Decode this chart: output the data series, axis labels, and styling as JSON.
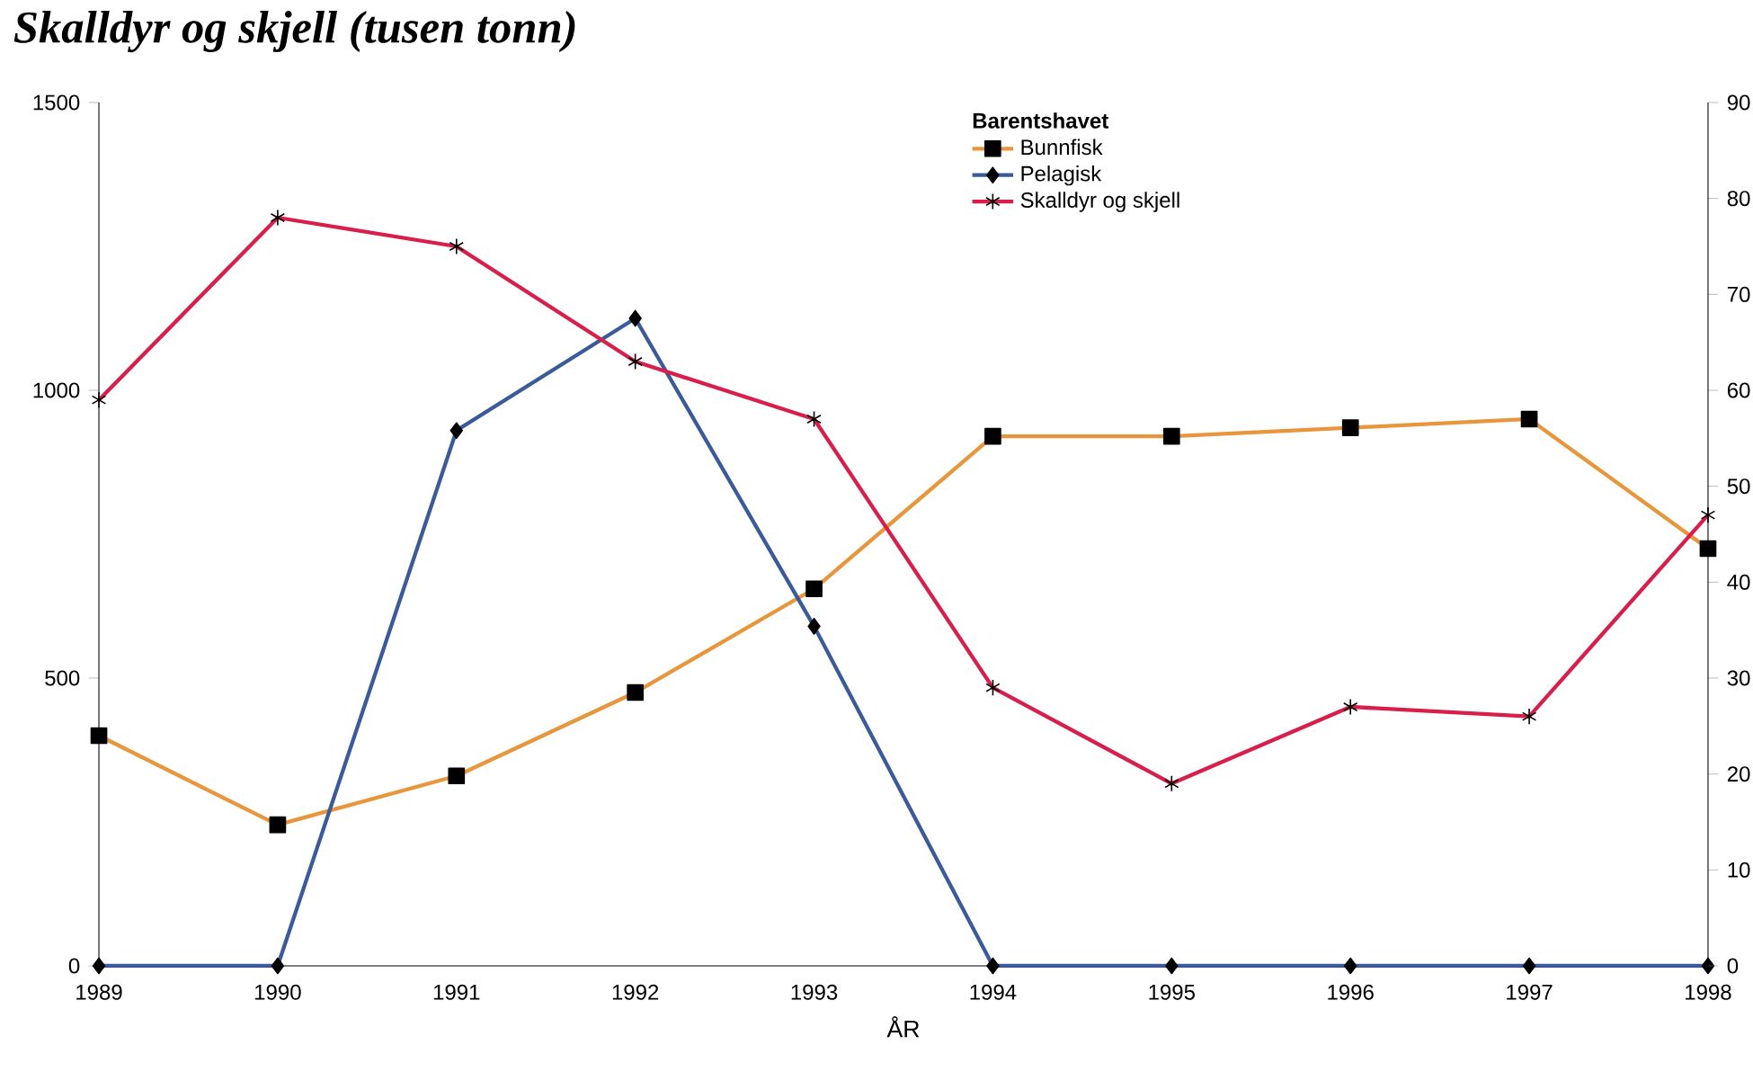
{
  "chart_data": {
    "type": "line",
    "title": "Skalldyr og skjell (tusen tonn)",
    "xlabel": "ÅR",
    "legend_title": "Barentshavet",
    "legend": "top right",
    "x": [
      1989,
      1990,
      1991,
      1992,
      1993,
      1994,
      1995,
      1996,
      1997,
      1998
    ],
    "xlim": [
      1989,
      1998
    ],
    "xticks": [
      1989,
      1990,
      1991,
      1992,
      1993,
      1994,
      1995,
      1996,
      1997,
      1998
    ],
    "ylim": [
      0,
      1500
    ],
    "yticks": [
      0,
      500,
      1000,
      1500
    ],
    "y2lim": [
      0,
      90
    ],
    "y2ticks": [
      0,
      10,
      20,
      30,
      40,
      50,
      60,
      70,
      80,
      90
    ],
    "series": [
      {
        "name": "Bunnfisk",
        "color": "#e8963c",
        "marker": "square",
        "values": [
          400,
          245,
          330,
          475,
          655,
          920,
          920,
          935,
          950,
          725
        ]
      },
      {
        "name": "Pelagisk",
        "color": "#3a5a9a",
        "marker": "diamond",
        "values": [
          0,
          0,
          930,
          1125,
          590,
          0,
          0,
          0,
          0,
          0
        ]
      },
      {
        "name": "Skalldyr og skjell",
        "color": "#d81e4a",
        "marker": "cross",
        "axis": "y2",
        "values": [
          59,
          78,
          75,
          63,
          57,
          29,
          19,
          27,
          26,
          47
        ]
      }
    ]
  }
}
